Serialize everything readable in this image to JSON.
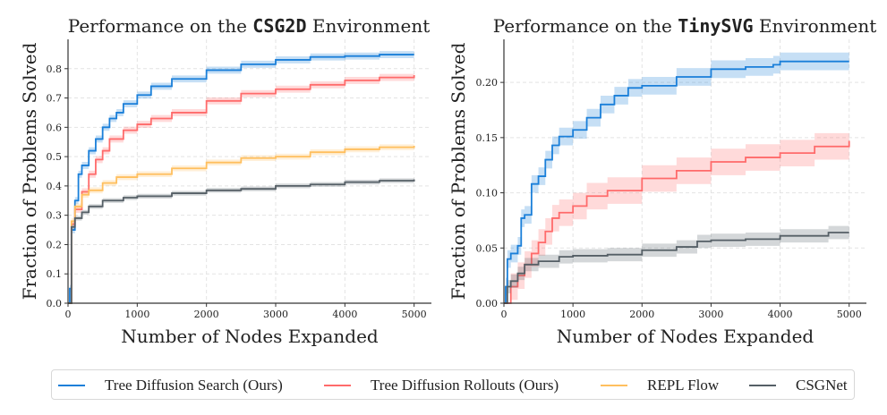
{
  "chart_data": [
    {
      "type": "line",
      "title_prefix": "Performance on the ",
      "title_env": "CSG2D",
      "title_suffix": " Environment",
      "xlabel": "Number of Nodes Expanded",
      "ylabel": "Fraction of Problems Solved",
      "xlim": [
        0,
        5250
      ],
      "ylim": [
        0,
        0.9
      ],
      "xticks": [
        0,
        1000,
        2000,
        3000,
        4000,
        5000
      ],
      "yticks": [
        0.0,
        0.1,
        0.2,
        0.3,
        0.4,
        0.5,
        0.6,
        0.7,
        0.8
      ],
      "ytick_decimals": 1,
      "grid": true,
      "series": [
        {
          "name": "Tree Diffusion Search (Ours)",
          "color": "#1a7fd9",
          "band": 0.012,
          "x": [
            0,
            25,
            50,
            100,
            150,
            200,
            300,
            400,
            500,
            600,
            700,
            800,
            1000,
            1200,
            1500,
            2000,
            2500,
            3000,
            3500,
            4000,
            4500,
            5000
          ],
          "y": [
            0,
            0.05,
            0.25,
            0.35,
            0.44,
            0.47,
            0.52,
            0.56,
            0.6,
            0.63,
            0.65,
            0.68,
            0.71,
            0.74,
            0.765,
            0.795,
            0.815,
            0.83,
            0.84,
            0.843,
            0.848,
            0.848
          ]
        },
        {
          "name": "Tree Diffusion Rollouts (Ours)",
          "color": "#ff6b6b",
          "band": 0.012,
          "x": [
            0,
            50,
            100,
            200,
            300,
            400,
            500,
            600,
            800,
            1000,
            1200,
            1500,
            2000,
            2500,
            3000,
            3500,
            4000,
            4500,
            5000
          ],
          "y": [
            0,
            0.27,
            0.32,
            0.38,
            0.44,
            0.49,
            0.52,
            0.56,
            0.59,
            0.61,
            0.63,
            0.65,
            0.69,
            0.715,
            0.73,
            0.745,
            0.76,
            0.77,
            0.778
          ]
        },
        {
          "name": "REPL Flow",
          "color": "#ffbf5e",
          "band": 0.01,
          "x": [
            0,
            50,
            100,
            200,
            300,
            500,
            700,
            1000,
            1500,
            2000,
            2500,
            3000,
            3500,
            4000,
            4500,
            5000
          ],
          "y": [
            0,
            0.28,
            0.33,
            0.37,
            0.385,
            0.41,
            0.43,
            0.44,
            0.46,
            0.48,
            0.495,
            0.5,
            0.515,
            0.525,
            0.532,
            0.537
          ]
        },
        {
          "name": "CSGNet",
          "color": "#555f66",
          "band": 0.008,
          "x": [
            0,
            50,
            100,
            200,
            300,
            500,
            800,
            1000,
            1500,
            2000,
            2500,
            3000,
            3500,
            4000,
            4500,
            5000
          ],
          "y": [
            0,
            0.26,
            0.29,
            0.31,
            0.33,
            0.35,
            0.36,
            0.365,
            0.375,
            0.385,
            0.39,
            0.4,
            0.405,
            0.413,
            0.418,
            0.422
          ]
        }
      ]
    },
    {
      "type": "line",
      "title_prefix": "Performance on the ",
      "title_env": "TinySVG",
      "title_suffix": " Environment",
      "xlabel": "Number of Nodes Expanded",
      "ylabel": "Fraction of Problems Solved",
      "xlim": [
        0,
        5250
      ],
      "ylim": [
        0,
        0.239
      ],
      "xticks": [
        0,
        1000,
        2000,
        3000,
        4000,
        5000
      ],
      "yticks": [
        0.0,
        0.05,
        0.1,
        0.15,
        0.2
      ],
      "ytick_decimals": 2,
      "grid": true,
      "series": [
        {
          "name": "Tree Diffusion Search (Ours)",
          "color": "#1a7fd9",
          "band": 0.008,
          "x": [
            0,
            25,
            50,
            100,
            200,
            250,
            300,
            400,
            500,
            600,
            700,
            800,
            1000,
            1200,
            1400,
            1600,
            1800,
            2000,
            2500,
            3000,
            3500,
            3900,
            4000,
            5000
          ],
          "y": [
            0,
            0.015,
            0.04,
            0.045,
            0.052,
            0.077,
            0.08,
            0.108,
            0.115,
            0.13,
            0.143,
            0.151,
            0.157,
            0.168,
            0.18,
            0.188,
            0.195,
            0.197,
            0.205,
            0.212,
            0.214,
            0.216,
            0.219,
            0.219
          ]
        },
        {
          "name": "Tree Diffusion Rollouts (Ours)",
          "color": "#ff6b6b",
          "band": 0.012,
          "x": [
            0,
            100,
            200,
            300,
            400,
            500,
            600,
            700,
            800,
            1000,
            1200,
            1500,
            2000,
            2500,
            3000,
            3500,
            4000,
            4500,
            5000
          ],
          "y": [
            0,
            0.015,
            0.025,
            0.035,
            0.045,
            0.055,
            0.065,
            0.077,
            0.082,
            0.088,
            0.097,
            0.102,
            0.113,
            0.12,
            0.128,
            0.132,
            0.136,
            0.142,
            0.147
          ]
        },
        {
          "name": "CSGNet",
          "color": "#555f66",
          "band": 0.006,
          "x": [
            0,
            50,
            100,
            200,
            300,
            500,
            800,
            1000,
            1500,
            2000,
            2500,
            2800,
            3000,
            3500,
            4000,
            4500,
            4700,
            5000
          ],
          "y": [
            0,
            0.015,
            0.02,
            0.027,
            0.035,
            0.038,
            0.042,
            0.043,
            0.044,
            0.048,
            0.051,
            0.056,
            0.057,
            0.058,
            0.061,
            0.061,
            0.064,
            0.064
          ]
        }
      ]
    }
  ],
  "legend": {
    "placement": "bottom",
    "items": [
      {
        "label": "Tree Diffusion Search (Ours)",
        "color": "#1a7fd9"
      },
      {
        "label": "Tree Diffusion Rollouts (Ours)",
        "color": "#ff6b6b"
      },
      {
        "label": "REPL Flow",
        "color": "#ffbf5e"
      },
      {
        "label": "CSGNet",
        "color": "#555f66"
      }
    ]
  }
}
